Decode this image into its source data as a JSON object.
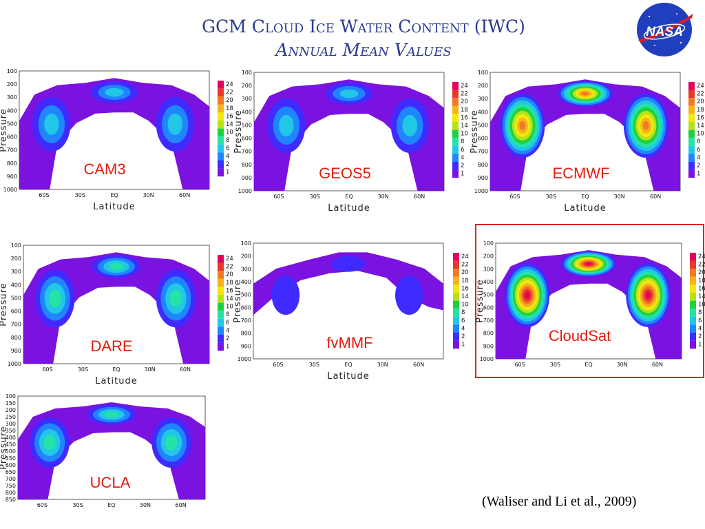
{
  "title": "GCM Cloud Ice Water Content (IWC)",
  "subtitle": "Annual Mean Values",
  "logo_text": "NASA",
  "citation": "(Waliser and Li et al., 2009)",
  "colors": {
    "title": "#2a3a8e",
    "model_label": "#e11d0e",
    "highlight_box": "#e02020",
    "colorbar": [
      "#7a12e0",
      "#3f2bff",
      "#1f86ff",
      "#22c7e6",
      "#25e2a6",
      "#1ed23f",
      "#b6e21a",
      "#f2e80e",
      "#f6b41a",
      "#f07a24",
      "#e8382c",
      "#e6005c"
    ]
  },
  "chart_data": [
    {
      "type": "heatmap",
      "model": "CAM3",
      "xlabel": "Latitude",
      "ylabel": "Pressure",
      "x_ticks": [
        "60S",
        "30S",
        "EQ",
        "30N",
        "60N"
      ],
      "y_ticks": [
        "100",
        "200",
        "300",
        "400",
        "500",
        "600",
        "700",
        "800",
        "900",
        "1000"
      ],
      "colorbar_ticks": [
        "24",
        "22",
        "20",
        "18",
        "16",
        "14",
        "10",
        "8",
        "6",
        "4",
        "2",
        "1"
      ],
      "intensity": {
        "max_level": "4"
      }
    },
    {
      "type": "heatmap",
      "model": "GEOS5",
      "xlabel": "Latitude",
      "ylabel": "Pressure",
      "x_ticks": [
        "60S",
        "30S",
        "EQ",
        "30N",
        "60N"
      ],
      "y_ticks": [
        "100",
        "200",
        "300",
        "400",
        "500",
        "600",
        "700",
        "800",
        "900",
        "1000"
      ],
      "colorbar_ticks": [
        "24",
        "22",
        "20",
        "18",
        "16",
        "14",
        "10",
        "8",
        "6",
        "4",
        "2",
        "1"
      ],
      "intensity": {
        "max_level": "4"
      }
    },
    {
      "type": "heatmap",
      "model": "ECMWF",
      "xlabel": "Latitude",
      "ylabel": "Pressure",
      "x_ticks": [
        "60S",
        "30S",
        "EQ",
        "30N",
        "60N"
      ],
      "y_ticks": [
        "100",
        "200",
        "300",
        "400",
        "500",
        "600",
        "700",
        "800",
        "900",
        "1000"
      ],
      "colorbar_ticks": [
        "24",
        "22",
        "20",
        "18",
        "16",
        "14",
        "10",
        "8",
        "6",
        "4",
        "2",
        "1"
      ],
      "intensity": {
        "max_level": "16"
      }
    },
    {
      "type": "heatmap",
      "model": "DARE",
      "xlabel": "Latitude",
      "ylabel": "Pressure",
      "x_ticks": [
        "60S",
        "30S",
        "EQ",
        "30N",
        "60N"
      ],
      "y_ticks": [
        "100",
        "200",
        "300",
        "400",
        "500",
        "600",
        "700",
        "800",
        "900",
        "1000"
      ],
      "colorbar_ticks": [
        "24",
        "22",
        "20",
        "18",
        "16",
        "14",
        "10",
        "8",
        "6",
        "4",
        "2",
        "1"
      ],
      "intensity": {
        "max_level": "6"
      }
    },
    {
      "type": "heatmap",
      "model": "fvMMF",
      "xlabel": "Latitude",
      "ylabel": "Pressure",
      "x_ticks": [
        "60S",
        "30S",
        "EQ",
        "30N",
        "60N"
      ],
      "y_ticks": [
        "100",
        "200",
        "300",
        "400",
        "500",
        "600",
        "700",
        "800",
        "900",
        "1000"
      ],
      "colorbar_ticks": [
        "24",
        "22",
        "20",
        "18",
        "16",
        "14",
        "10",
        "8",
        "6",
        "4",
        "2",
        "1"
      ],
      "intensity": {
        "max_level": "2"
      }
    },
    {
      "type": "heatmap",
      "model": "CloudSat",
      "xlabel": "",
      "ylabel": "Pressure",
      "x_ticks": [
        "60S",
        "30S",
        "EQ",
        "30N",
        "60N"
      ],
      "y_ticks": [
        "100",
        "200",
        "300",
        "400",
        "500",
        "600",
        "700",
        "800",
        "900",
        "1000"
      ],
      "colorbar_ticks": [
        "24",
        "22",
        "20",
        "18",
        "16",
        "14",
        "10",
        "8",
        "6",
        "4",
        "2",
        "1"
      ],
      "intensity": {
        "max_level": "24"
      }
    },
    {
      "type": "heatmap",
      "model": "UCLA",
      "xlabel": "",
      "ylabel": "Pressure",
      "x_ticks": [
        "60S",
        "30S",
        "EQ",
        "30N",
        "60N"
      ],
      "y_ticks": [
        "100",
        "150",
        "200",
        "250",
        "300",
        "350",
        "400",
        "450",
        "500",
        "550",
        "600",
        "650",
        "700",
        "750",
        "800",
        "850"
      ],
      "colorbar_ticks": [],
      "intensity": {
        "max_level": "6"
      }
    }
  ]
}
